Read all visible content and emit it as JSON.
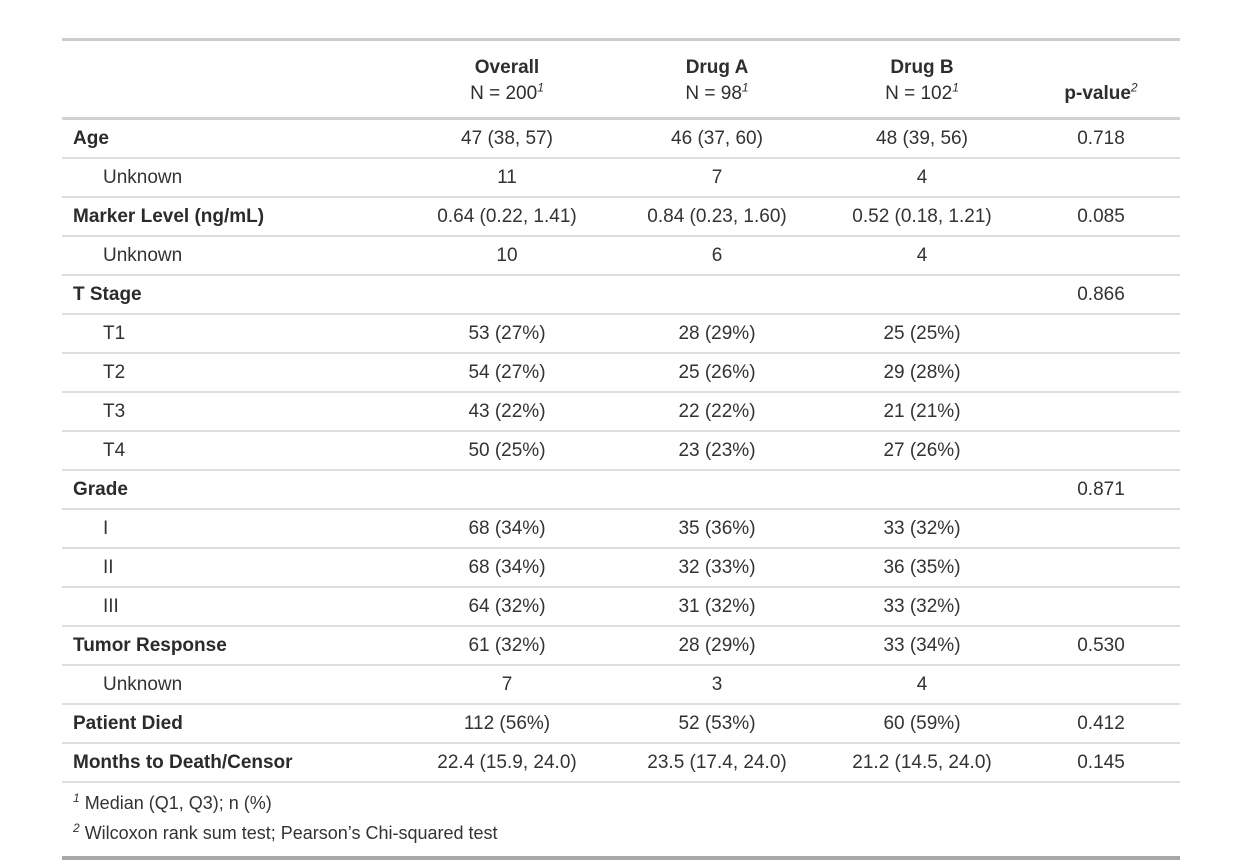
{
  "chart_data": {
    "type": "table",
    "title": "",
    "stub_header": "",
    "column_headers": {
      "groups": [
        {
          "label": "Overall",
          "n_line": "N = 200",
          "footnote_ref": "1"
        },
        {
          "label": "Drug A",
          "n_line": "N = 98",
          "footnote_ref": "1"
        },
        {
          "label": "Drug B",
          "n_line": "N = 102",
          "footnote_ref": "1"
        }
      ],
      "p_value": {
        "label": "p-value",
        "footnote_ref": "2"
      }
    },
    "rows": [
      {
        "label": "Age",
        "bold": true,
        "indent": false,
        "overall": "47 (38, 57)",
        "drug_a": "46 (37, 60)",
        "drug_b": "48 (39, 56)",
        "p_value": "0.718"
      },
      {
        "label": "Unknown",
        "bold": false,
        "indent": true,
        "overall": "11",
        "drug_a": "7",
        "drug_b": "4",
        "p_value": ""
      },
      {
        "label": "Marker Level (ng/mL)",
        "bold": true,
        "indent": false,
        "overall": "0.64 (0.22, 1.41)",
        "drug_a": "0.84 (0.23, 1.60)",
        "drug_b": "0.52 (0.18, 1.21)",
        "p_value": "0.085"
      },
      {
        "label": "Unknown",
        "bold": false,
        "indent": true,
        "overall": "10",
        "drug_a": "6",
        "drug_b": "4",
        "p_value": ""
      },
      {
        "label": "T Stage",
        "bold": true,
        "indent": false,
        "overall": "",
        "drug_a": "",
        "drug_b": "",
        "p_value": "0.866"
      },
      {
        "label": "T1",
        "bold": false,
        "indent": true,
        "overall": "53 (27%)",
        "drug_a": "28 (29%)",
        "drug_b": "25 (25%)",
        "p_value": ""
      },
      {
        "label": "T2",
        "bold": false,
        "indent": true,
        "overall": "54 (27%)",
        "drug_a": "25 (26%)",
        "drug_b": "29 (28%)",
        "p_value": ""
      },
      {
        "label": "T3",
        "bold": false,
        "indent": true,
        "overall": "43 (22%)",
        "drug_a": "22 (22%)",
        "drug_b": "21 (21%)",
        "p_value": ""
      },
      {
        "label": "T4",
        "bold": false,
        "indent": true,
        "overall": "50 (25%)",
        "drug_a": "23 (23%)",
        "drug_b": "27 (26%)",
        "p_value": ""
      },
      {
        "label": "Grade",
        "bold": true,
        "indent": false,
        "overall": "",
        "drug_a": "",
        "drug_b": "",
        "p_value": "0.871"
      },
      {
        "label": "I",
        "bold": false,
        "indent": true,
        "overall": "68 (34%)",
        "drug_a": "35 (36%)",
        "drug_b": "33 (32%)",
        "p_value": ""
      },
      {
        "label": "II",
        "bold": false,
        "indent": true,
        "overall": "68 (34%)",
        "drug_a": "32 (33%)",
        "drug_b": "36 (35%)",
        "p_value": ""
      },
      {
        "label": "III",
        "bold": false,
        "indent": true,
        "overall": "64 (32%)",
        "drug_a": "31 (32%)",
        "drug_b": "33 (32%)",
        "p_value": ""
      },
      {
        "label": "Tumor Response",
        "bold": true,
        "indent": false,
        "overall": "61 (32%)",
        "drug_a": "28 (29%)",
        "drug_b": "33 (34%)",
        "p_value": "0.530"
      },
      {
        "label": "Unknown",
        "bold": false,
        "indent": true,
        "overall": "7",
        "drug_a": "3",
        "drug_b": "4",
        "p_value": ""
      },
      {
        "label": "Patient Died",
        "bold": true,
        "indent": false,
        "overall": "112 (56%)",
        "drug_a": "52 (53%)",
        "drug_b": "60 (59%)",
        "p_value": "0.412"
      },
      {
        "label": "Months to Death/Censor",
        "bold": true,
        "indent": false,
        "overall": "22.4 (15.9, 24.0)",
        "drug_a": "23.5 (17.4, 24.0)",
        "drug_b": "21.2 (14.5, 24.0)",
        "p_value": "0.145"
      }
    ],
    "footnotes": [
      {
        "marker": "1",
        "text": "Median (Q1, Q3); n (%)"
      },
      {
        "marker": "2",
        "text": "Wilcoxon rank sum test; Pearson’s Chi-squared test"
      }
    ],
    "layout": {
      "border_top_color": "#cdcdcd",
      "border_bottom_color": "#a8a8a8",
      "row_divider_color": "#dedede",
      "header_divider_color": "#d2d2d2",
      "text_color": "#333333"
    }
  }
}
